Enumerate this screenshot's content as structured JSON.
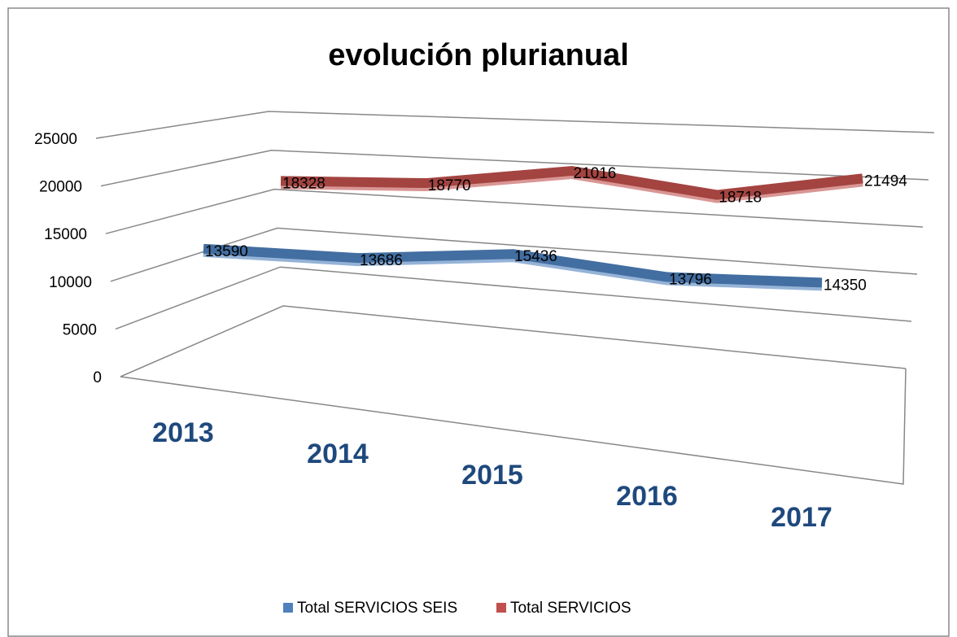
{
  "chart_data": {
    "type": "line",
    "title": "evolución plurianual",
    "categories": [
      "2013",
      "2014",
      "2015",
      "2016",
      "2017"
    ],
    "series": [
      {
        "name": "Total SERVICIOS SEIS",
        "color": "#4f81bd",
        "values": [
          13590,
          13686,
          15436,
          13796,
          14350
        ]
      },
      {
        "name": "Total SERVICIOS",
        "color": "#c0504d",
        "values": [
          18328,
          18770,
          21016,
          18718,
          21494
        ]
      }
    ],
    "ylim": [
      0,
      25000
    ],
    "yticks": [
      0,
      5000,
      10000,
      15000,
      20000,
      25000
    ],
    "grid": true,
    "legend": "bottom"
  }
}
